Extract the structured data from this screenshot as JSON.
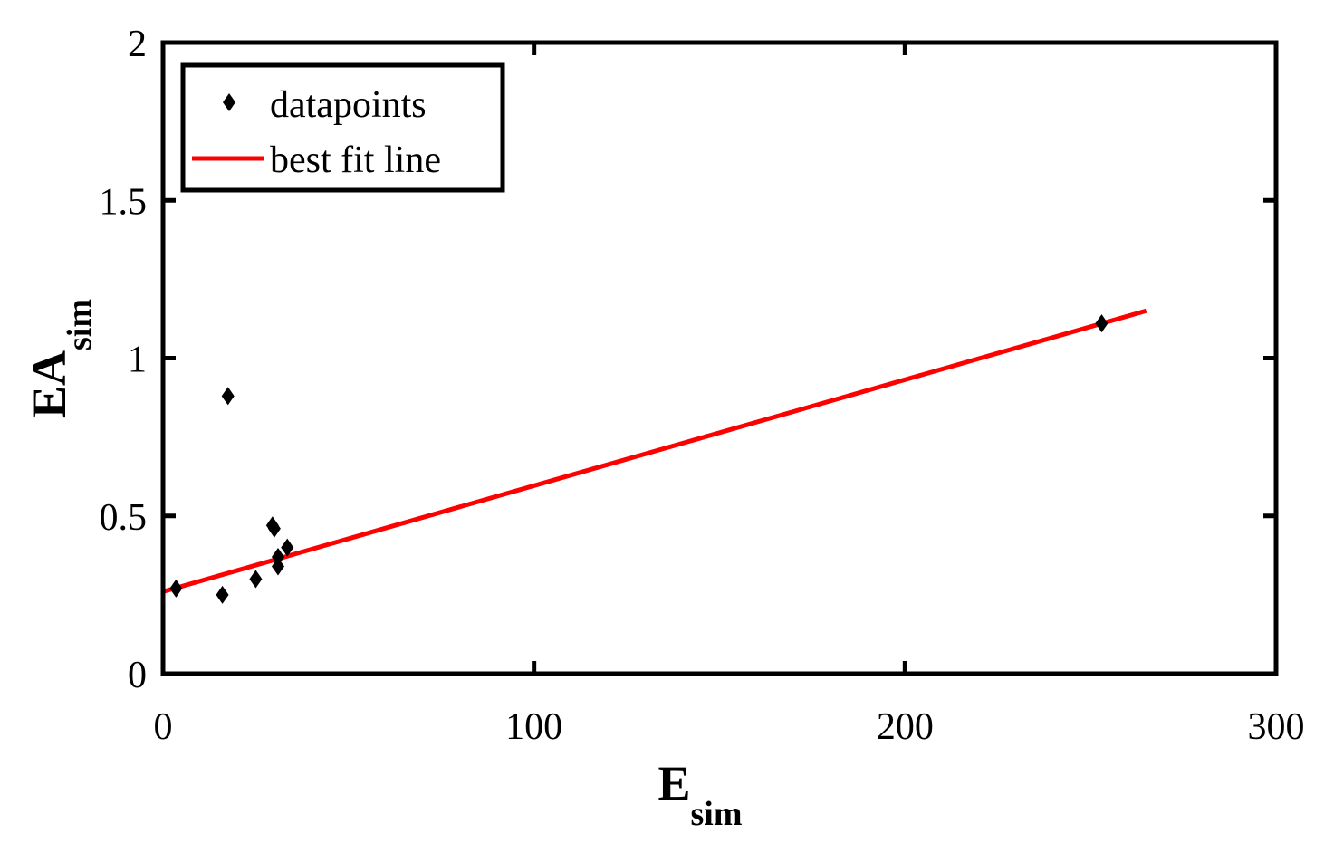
{
  "chart_data": {
    "type": "scatter",
    "title": "",
    "xlabel": {
      "main": "E",
      "sub": "sim"
    },
    "ylabel": {
      "main": "EA",
      "sub": "sim"
    },
    "xlim": [
      0,
      300
    ],
    "ylim": [
      0,
      2
    ],
    "xticks": [
      0,
      100,
      200,
      300
    ],
    "yticks": [
      0,
      0.5,
      1,
      1.5,
      2
    ],
    "xtick_labels": [
      "0",
      "100",
      "200",
      "300"
    ],
    "ytick_labels": [
      "0",
      "0.5",
      "1",
      "1.5",
      "2"
    ],
    "grid": false,
    "legend": {
      "position": "top-left",
      "entries": [
        {
          "label": "datapoints",
          "marker": "diamond",
          "color": "#000000"
        },
        {
          "label": "best fit line",
          "marker": "line",
          "color": "#ff0000"
        }
      ]
    },
    "series": [
      {
        "name": "datapoints",
        "kind": "scatter",
        "color": "#000000",
        "points": [
          {
            "x": 3.5,
            "y": 0.27
          },
          {
            "x": 16,
            "y": 0.25
          },
          {
            "x": 17.5,
            "y": 0.88
          },
          {
            "x": 25,
            "y": 0.3
          },
          {
            "x": 29.5,
            "y": 0.47
          },
          {
            "x": 30,
            "y": 0.46
          },
          {
            "x": 31,
            "y": 0.37
          },
          {
            "x": 31,
            "y": 0.34
          },
          {
            "x": 33.5,
            "y": 0.4
          },
          {
            "x": 253,
            "y": 1.11
          }
        ]
      },
      {
        "name": "best fit line",
        "kind": "line",
        "color": "#ff0000",
        "points": [
          {
            "x": 0,
            "y": 0.26
          },
          {
            "x": 265,
            "y": 1.15
          }
        ]
      }
    ]
  }
}
